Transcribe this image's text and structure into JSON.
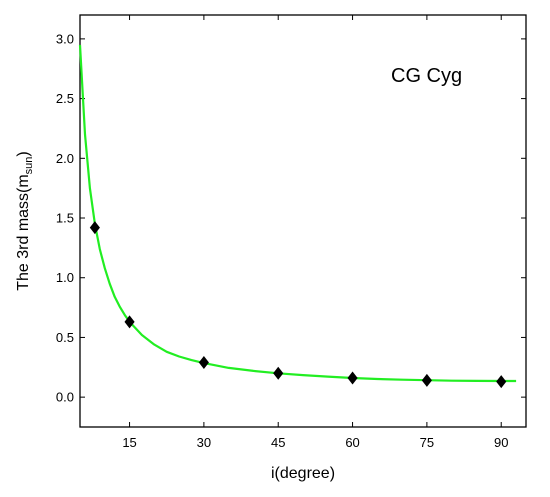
{
  "chart_data": {
    "type": "scatter",
    "xlabel": "i(degree)",
    "ylabel_main": "The 3rd mass(m",
    "ylabel_sub": "sun",
    "ylabel_close": ")",
    "annotation": "CG Cyg",
    "xlim": [
      5,
      95
    ],
    "ylim": [
      -0.25,
      3.2
    ],
    "xticks": [
      15,
      30,
      45,
      60,
      75,
      90
    ],
    "yticks": [
      0.0,
      0.5,
      1.0,
      1.5,
      2.0,
      2.5,
      3.0
    ],
    "ytick_labels": [
      "0.0",
      "0.5",
      "1.0",
      "1.5",
      "2.0",
      "2.5",
      "3.0"
    ],
    "grid": false,
    "series": [
      {
        "kind": "points",
        "marker": "diamond",
        "color": "#000000",
        "x": [
          8,
          15,
          30,
          45,
          60,
          75,
          90
        ],
        "y": [
          1.42,
          0.63,
          0.29,
          0.2,
          0.16,
          0.14,
          0.13
        ]
      },
      {
        "kind": "fit-curve",
        "color": "#22ee22",
        "x": [
          5,
          6,
          7,
          8,
          9,
          10,
          11,
          12,
          13,
          14,
          15,
          17.5,
          20,
          22.5,
          25,
          27.5,
          30,
          35,
          40,
          45,
          50,
          55,
          60,
          65,
          70,
          75,
          80,
          85,
          90,
          93
        ],
        "y": [
          2.95,
          2.2,
          1.75,
          1.45,
          1.24,
          1.08,
          0.95,
          0.84,
          0.76,
          0.69,
          0.63,
          0.52,
          0.44,
          0.38,
          0.34,
          0.31,
          0.285,
          0.245,
          0.22,
          0.2,
          0.185,
          0.172,
          0.16,
          0.152,
          0.146,
          0.142,
          0.138,
          0.136,
          0.135,
          0.135
        ]
      }
    ]
  }
}
